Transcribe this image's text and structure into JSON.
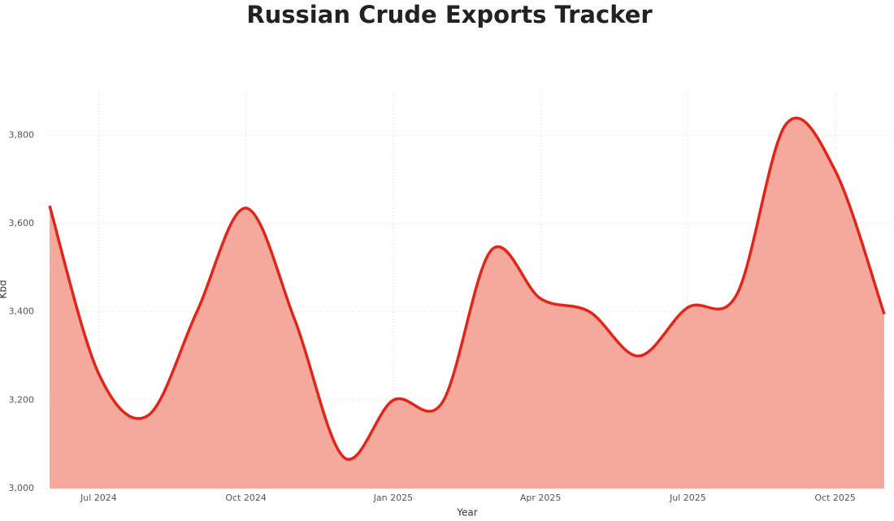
{
  "chart_data": {
    "type": "area",
    "title": "Russian Crude Exports Tracker",
    "x_label": "Year",
    "y_label": "Kbd",
    "x": [
      "2024-06",
      "2024-07",
      "2024-08",
      "2024-09",
      "2024-10",
      "2024-11",
      "2024-12",
      "2025-01",
      "2025-02",
      "2025-03",
      "2025-04",
      "2025-05",
      "2025-06",
      "2025-07",
      "2025-08",
      "2025-09",
      "2025-10",
      "2025-11"
    ],
    "series": [
      {
        "name": "Kbd",
        "color": "#e0261a",
        "fill": "#f5a89c",
        "values": [
          3640,
          3260,
          3165,
          3400,
          3635,
          3380,
          3070,
          3200,
          3195,
          3540,
          3430,
          3400,
          3300,
          3410,
          3440,
          3825,
          3720,
          3395
        ]
      }
    ],
    "xlim": [
      "2024-06",
      "2025-11"
    ],
    "xticks": [
      {
        "value": "2024-07",
        "label": "Jul 2024"
      },
      {
        "value": "2024-10",
        "label": "Oct 2024"
      },
      {
        "value": "2025-01",
        "label": "Jan 2025"
      },
      {
        "value": "2025-04",
        "label": "Apr 2025"
      },
      {
        "value": "2025-07",
        "label": "Jul 2025"
      },
      {
        "value": "2025-10",
        "label": "Oct 2025"
      }
    ],
    "ylim": [
      3000,
      3900
    ],
    "yticks": [
      {
        "value": 3000,
        "label": "3,000"
      },
      {
        "value": 3200,
        "label": "3,200"
      },
      {
        "value": 3400,
        "label": "3,400"
      },
      {
        "value": 3600,
        "label": "3,600"
      },
      {
        "value": 3800,
        "label": "3,800"
      }
    ],
    "grid": true
  }
}
